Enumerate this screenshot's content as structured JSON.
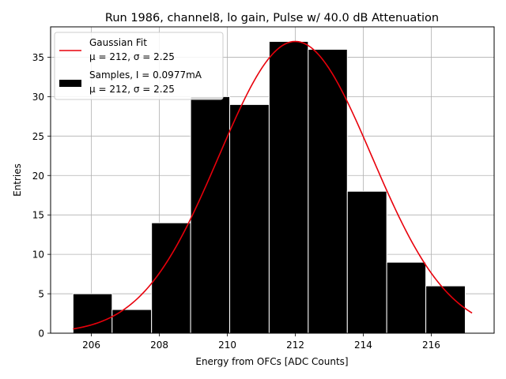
{
  "chart_data": {
    "type": "bar",
    "title": "Run 1986, channel8, lo gain, Pulse w/ 40.0 dB Attenuation",
    "xlabel": "Energy from OFCs [ADC Counts]",
    "ylabel": "Entries",
    "xlim": [
      204.8,
      217.85
    ],
    "ylim": [
      0,
      38.85
    ],
    "grid": true,
    "legend_position": "top-left",
    "xticks": [
      206,
      208,
      210,
      212,
      214,
      216
    ],
    "yticks": [
      0,
      5,
      10,
      15,
      20,
      25,
      30,
      35
    ],
    "histogram": {
      "name": "Samples",
      "bin_edges": [
        205.46,
        206.61,
        207.77,
        208.92,
        210.07,
        211.23,
        212.38,
        213.53,
        214.69,
        215.84,
        217.0
      ],
      "counts": [
        5,
        3,
        14,
        30,
        29,
        37,
        36,
        18,
        9,
        6
      ],
      "color": "#000000",
      "edge_color": "#ffffff"
    },
    "fit": {
      "name": "Gaussian Fit",
      "mu": 212,
      "sigma": 2.25,
      "amplitude": 37,
      "x_range": [
        205.46,
        217.2
      ],
      "color": "#e8000b"
    },
    "legend": [
      {
        "kind": "line",
        "label": "Gaussian Fit",
        "sub": "μ = 212, σ = 2.25"
      },
      {
        "kind": "patch",
        "label": "Samples, I = 0.0977mA",
        "sub": "μ = 212, σ = 2.25"
      }
    ]
  }
}
